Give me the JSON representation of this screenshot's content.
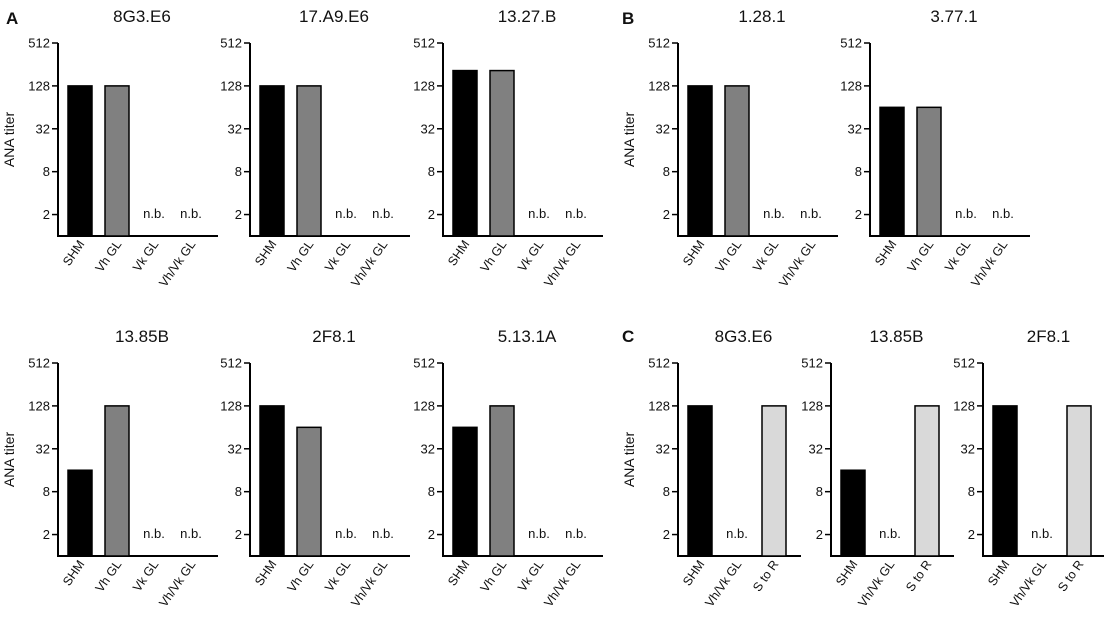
{
  "panel_letters": [
    "A",
    "B",
    "C"
  ],
  "chart_data": [
    {
      "type": "bar",
      "panel": "A",
      "title": "8G3.E6",
      "ylabel": "ANA titer",
      "yscale": "log2",
      "ylim": [
        1,
        512
      ],
      "yticks": [
        "2",
        "8",
        "32",
        "128",
        "512"
      ],
      "categories": [
        "SHM",
        "Vh GL",
        "Vk GL",
        "Vh/Vk GL"
      ],
      "values": [
        128,
        128,
        null,
        null
      ],
      "colors": [
        "#000000",
        "#808080",
        null,
        null
      ],
      "bar_labels": [
        null,
        null,
        "n.b.",
        "n.b."
      ]
    },
    {
      "type": "bar",
      "panel": "A",
      "title": "17.A9.E6",
      "ylabel": "",
      "yscale": "log2",
      "ylim": [
        1,
        512
      ],
      "yticks": [
        "2",
        "8",
        "32",
        "128",
        "512"
      ],
      "categories": [
        "SHM",
        "Vh GL",
        "Vk GL",
        "Vh/Vk GL"
      ],
      "values": [
        128,
        128,
        null,
        null
      ],
      "colors": [
        "#000000",
        "#808080",
        null,
        null
      ],
      "bar_labels": [
        null,
        null,
        "n.b.",
        "n.b."
      ]
    },
    {
      "type": "bar",
      "panel": "A",
      "title": "13.27.B",
      "ylabel": "",
      "yscale": "log2",
      "ylim": [
        1,
        512
      ],
      "yticks": [
        "2",
        "8",
        "32",
        "128",
        "512"
      ],
      "categories": [
        "SHM",
        "Vh GL",
        "Vk GL",
        "Vh/Vk GL"
      ],
      "values": [
        210,
        210,
        null,
        null
      ],
      "colors": [
        "#000000",
        "#808080",
        null,
        null
      ],
      "bar_labels": [
        null,
        null,
        "n.b.",
        "n.b."
      ]
    },
    {
      "type": "bar",
      "panel": "B",
      "title": "1.28.1",
      "ylabel": "ANA titer",
      "yscale": "log2",
      "ylim": [
        1,
        512
      ],
      "yticks": [
        "2",
        "8",
        "32",
        "128",
        "512"
      ],
      "categories": [
        "SHM",
        "Vh GL",
        "Vk GL",
        "Vh/Vk GL"
      ],
      "values": [
        128,
        128,
        null,
        null
      ],
      "colors": [
        "#000000",
        "#808080",
        null,
        null
      ],
      "bar_labels": [
        null,
        null,
        "n.b.",
        "n.b."
      ]
    },
    {
      "type": "bar",
      "panel": "B",
      "title": "3.77.1",
      "ylabel": "",
      "yscale": "log2",
      "ylim": [
        1,
        512
      ],
      "yticks": [
        "2",
        "8",
        "32",
        "128",
        "512"
      ],
      "categories": [
        "SHM",
        "Vh GL",
        "Vk GL",
        "Vh/Vk GL"
      ],
      "values": [
        64,
        64,
        null,
        null
      ],
      "colors": [
        "#000000",
        "#808080",
        null,
        null
      ],
      "bar_labels": [
        null,
        null,
        "n.b.",
        "n.b."
      ]
    },
    {
      "type": "bar",
      "panel": "A",
      "title": "13.85B",
      "ylabel": "ANA titer",
      "yscale": "log2",
      "ylim": [
        1,
        512
      ],
      "yticks": [
        "2",
        "8",
        "32",
        "128",
        "512"
      ],
      "categories": [
        "SHM",
        "Vh GL",
        "Vk GL",
        "Vh/Vk GL"
      ],
      "values": [
        16,
        128,
        null,
        null
      ],
      "colors": [
        "#000000",
        "#808080",
        null,
        null
      ],
      "bar_labels": [
        null,
        null,
        "n.b.",
        "n.b."
      ]
    },
    {
      "type": "bar",
      "panel": "A",
      "title": "2F8.1",
      "ylabel": "",
      "yscale": "log2",
      "ylim": [
        1,
        512
      ],
      "yticks": [
        "2",
        "8",
        "32",
        "128",
        "512"
      ],
      "categories": [
        "SHM",
        "Vh GL",
        "Vk GL",
        "Vh/Vk GL"
      ],
      "values": [
        128,
        64,
        null,
        null
      ],
      "colors": [
        "#000000",
        "#808080",
        null,
        null
      ],
      "bar_labels": [
        null,
        null,
        "n.b.",
        "n.b."
      ]
    },
    {
      "type": "bar",
      "panel": "A",
      "title": "5.13.1A",
      "ylabel": "",
      "yscale": "log2",
      "ylim": [
        1,
        512
      ],
      "yticks": [
        "2",
        "8",
        "32",
        "128",
        "512"
      ],
      "categories": [
        "SHM",
        "Vh GL",
        "Vk GL",
        "Vh/Vk GL"
      ],
      "values": [
        64,
        128,
        null,
        null
      ],
      "colors": [
        "#000000",
        "#808080",
        null,
        null
      ],
      "bar_labels": [
        null,
        null,
        "n.b.",
        "n.b."
      ]
    },
    {
      "type": "bar",
      "panel": "C",
      "title": "8G3.E6",
      "ylabel": "ANA titer",
      "yscale": "log2",
      "ylim": [
        1,
        512
      ],
      "yticks": [
        "2",
        "8",
        "32",
        "128",
        "512"
      ],
      "categories": [
        "SHM",
        "Vh/Vk GL",
        "S to R"
      ],
      "values": [
        128,
        null,
        128
      ],
      "colors": [
        "#000000",
        null,
        "#d9d9d9"
      ],
      "bar_labels": [
        null,
        "n.b.",
        null
      ]
    },
    {
      "type": "bar",
      "panel": "C",
      "title": "13.85B",
      "ylabel": "",
      "yscale": "log2",
      "ylim": [
        1,
        512
      ],
      "yticks": [
        "2",
        "8",
        "32",
        "128",
        "512"
      ],
      "categories": [
        "SHM",
        "Vh/Vk GL",
        "S to R"
      ],
      "values": [
        16,
        null,
        128
      ],
      "colors": [
        "#000000",
        null,
        "#d9d9d9"
      ],
      "bar_labels": [
        null,
        "n.b.",
        null
      ]
    },
    {
      "type": "bar",
      "panel": "C",
      "title": "2F8.1",
      "ylabel": "",
      "yscale": "log2",
      "ylim": [
        1,
        512
      ],
      "yticks": [
        "2",
        "8",
        "32",
        "128",
        "512"
      ],
      "categories": [
        "SHM",
        "Vh/Vk GL",
        "S to R"
      ],
      "values": [
        128,
        null,
        128
      ],
      "colors": [
        "#000000",
        null,
        "#d9d9d9"
      ],
      "bar_labels": [
        null,
        "n.b.",
        null
      ]
    }
  ]
}
